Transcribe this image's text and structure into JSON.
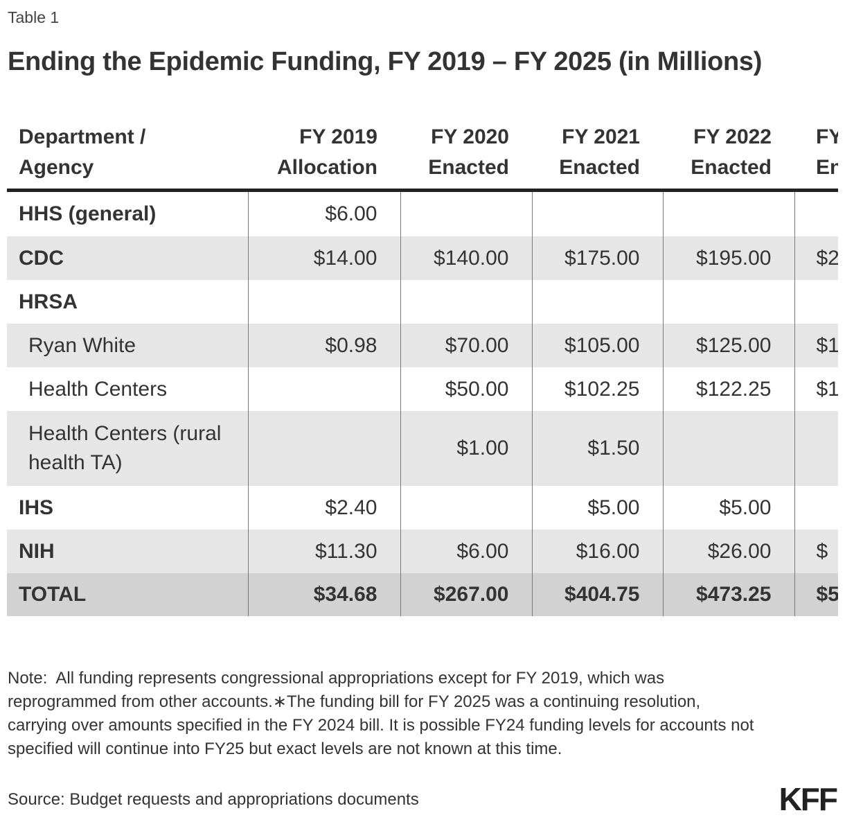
{
  "label": "Table 1",
  "title": "Ending the Epidemic Funding, FY 2019 – FY 2025 (in Millions)",
  "table": {
    "header": [
      [
        "Department /",
        "Agency"
      ],
      [
        "FY 2019",
        "Allocation"
      ],
      [
        "FY 2020",
        "Enacted"
      ],
      [
        "FY 2021",
        "Enacted"
      ],
      [
        "FY 2022",
        "Enacted"
      ],
      [
        "FY",
        "En"
      ]
    ],
    "rows": [
      {
        "cells": [
          "HHS (general)",
          "$6.00",
          null,
          null,
          null,
          null
        ]
      },
      {
        "cells": [
          "CDC",
          "$14.00",
          "$140.00",
          "$175.00",
          "$195.00",
          "$2"
        ]
      },
      {
        "cells": [
          "HRSA",
          null,
          null,
          null,
          null,
          null
        ]
      },
      {
        "indent": true,
        "cells": [
          "Ryan White",
          "$0.98",
          "$70.00",
          "$105.00",
          "$125.00",
          "$1"
        ]
      },
      {
        "indent": true,
        "cells": [
          "Health Centers",
          null,
          "$50.00",
          "$102.25",
          "$122.25",
          "$1"
        ]
      },
      {
        "indent": true,
        "cells": [
          "Health Centers (rural health TA)",
          null,
          "$1.00",
          "$1.50",
          null,
          null
        ]
      },
      {
        "cells": [
          "IHS",
          "$2.40",
          null,
          "$5.00",
          "$5.00",
          null
        ]
      },
      {
        "cells": [
          "NIH",
          "$11.30",
          "$6.00",
          "$16.00",
          "$26.00",
          "$"
        ]
      },
      {
        "total": true,
        "cells": [
          "TOTAL",
          "$34.68",
          "$267.00",
          "$404.75",
          "$473.25",
          "$5"
        ]
      }
    ]
  },
  "note": "Note:  All funding represents congressional appropriations except for FY 2019, which was reprogrammed from other accounts.∗The funding bill for FY 2025 was a continuing resolution, carrying over amounts specified in the FY 2024 bill. It is possible FY24 funding levels for accounts not specified will continue into FY25 but exact levels are not known at this time.",
  "source": "Source: Budget requests and appropriations documents",
  "logo": "KFF"
}
